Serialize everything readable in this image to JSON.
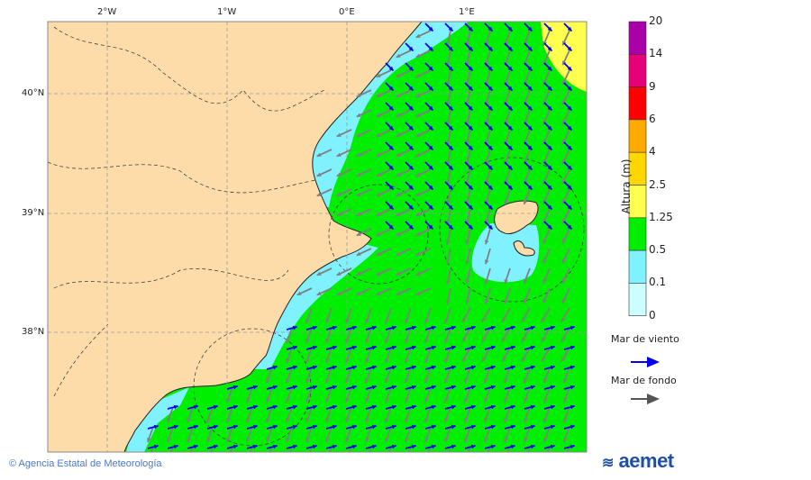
{
  "map": {
    "lon_labels": [
      "2°W",
      "1°W",
      "0°E",
      "1°E"
    ],
    "lat_labels": [
      "40°N",
      "39°N",
      "38°N"
    ]
  },
  "colorbar": {
    "title": "Altura (m)",
    "levels": [
      "20",
      "14",
      "9",
      "6",
      "4",
      "2.5",
      "1.25",
      "0.5",
      "0.1",
      "0"
    ],
    "colors": [
      "#aa00aa",
      "#e6007a",
      "#ff0000",
      "#ffaa00",
      "#ffd700",
      "#ffff4d",
      "#00ee00",
      "#80f2ff",
      "#ccffff"
    ]
  },
  "legend": {
    "wind_sea": "Mar de viento",
    "wind_sea_color": "#0000ee",
    "swell": "Mar de fondo",
    "swell_color": "#555555"
  },
  "footer": {
    "copyright": "© Agencia Estatal de Meteorología",
    "logo": "aemet"
  }
}
